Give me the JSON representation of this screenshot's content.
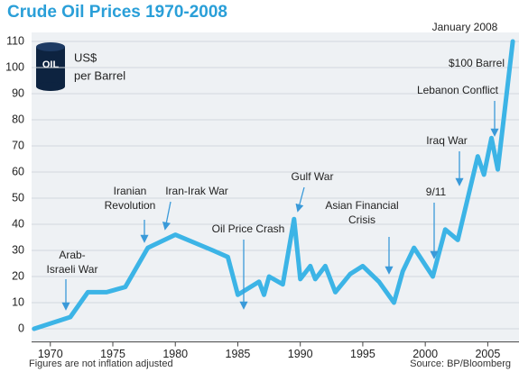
{
  "chart_data": {
    "type": "line",
    "title": "Crude Oil Prices 1970-2008",
    "x": [
      1968.7,
      1971.6,
      1973.0,
      1974.5,
      1976.0,
      1977.8,
      1980.0,
      1983.0,
      1984.2,
      1985.0,
      1986.7,
      1987.1,
      1987.5,
      1988.6,
      1989.5,
      1990.0,
      1990.8,
      1991.2,
      1992.0,
      1992.8,
      1994.0,
      1995.0,
      1996.3,
      1997.5,
      1998.2,
      1999.1,
      2000.6,
      2001.6,
      2002.6,
      2004.2,
      2004.7,
      2005.3,
      2005.8,
      2007.0
    ],
    "values": [
      0,
      4.5,
      14,
      14,
      16,
      31,
      36,
      30,
      27.5,
      13,
      18,
      13,
      20,
      17,
      42,
      19,
      24,
      19,
      24,
      14,
      21,
      24,
      18,
      10,
      22,
      31,
      20,
      38,
      34,
      66,
      59,
      73,
      61,
      110
    ],
    "color": "#3cb4e6",
    "xlim": [
      1968.5,
      2007.5
    ],
    "xticks": [
      1970,
      1975,
      1980,
      1985,
      1990,
      1995,
      2000,
      2005
    ],
    "ylim": [
      -4,
      112
    ],
    "yticks": [
      0,
      10,
      20,
      30,
      40,
      50,
      60,
      70,
      80,
      90,
      100,
      110
    ],
    "grid": true,
    "unit_icon": "OIL",
    "unit_label": [
      "US$",
      "per Barrel"
    ],
    "annotations": [
      [
        "January 2008"
      ],
      [
        "$100 Barrel"
      ],
      [
        "Lebanon Conflict"
      ],
      [
        "Iraq War"
      ],
      [
        "9/11"
      ],
      [
        "Asian Financial",
        "Crisis"
      ],
      [
        "Gulf War"
      ],
      [
        "Oil Price Crash"
      ],
      [
        "Iran-Irak War"
      ],
      [
        "Iranian",
        "Revolution"
      ],
      [
        "Arab-",
        "Israeli War"
      ]
    ],
    "note": "Figures are not inflation adjusted",
    "source": "Source: BP/Bloomberg"
  }
}
